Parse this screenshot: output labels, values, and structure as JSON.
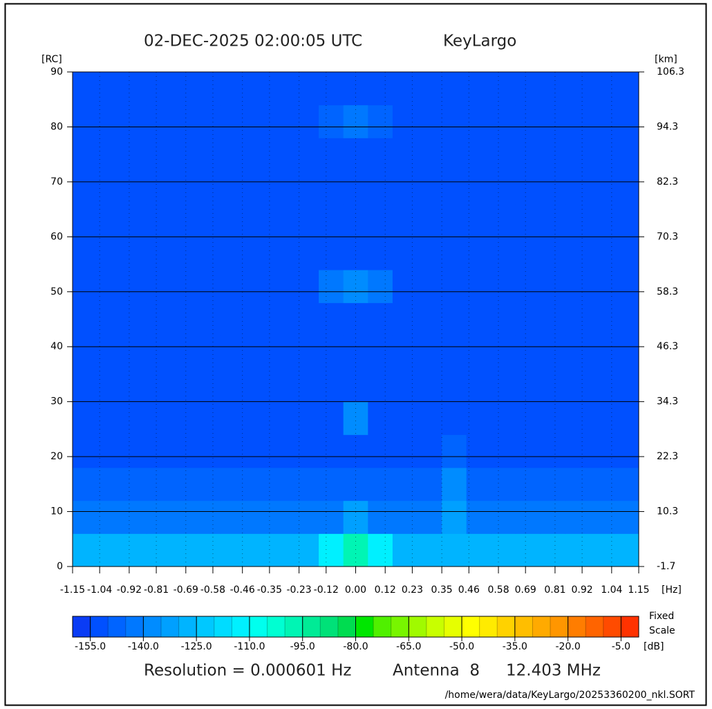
{
  "chart_data": {
    "type": "heatmap",
    "title": "02-DEC-2025 02:00:05 UTC",
    "subtitle": "KeyLargo",
    "x_label": "[Hz]",
    "y_label": "[RC]",
    "y2_label": "[km]",
    "xlim": [
      -1.15,
      1.15
    ],
    "ylim": [
      0,
      90
    ],
    "y2lim": [
      -1.7,
      106.3
    ],
    "xticks": [
      -1.15,
      -1.04,
      -0.92,
      -0.81,
      -0.69,
      -0.58,
      -0.46,
      -0.35,
      -0.23,
      -0.12,
      {
        "value": 0,
        "label": "0.00"
      },
      0.12,
      0.23,
      0.35,
      0.46,
      0.58,
      0.69,
      0.81,
      0.92,
      1.04,
      1.15
    ],
    "yticks": [
      0,
      10,
      20,
      30,
      40,
      50,
      60,
      70,
      80,
      90
    ],
    "y2ticks": [
      -1.7,
      10.3,
      22.3,
      34.3,
      46.3,
      58.3,
      70.3,
      82.3,
      94.3,
      106.3
    ],
    "grid": true,
    "xbins": [
      -1.15,
      -1.05,
      -0.95,
      -0.85,
      -0.75,
      -0.65,
      -0.55,
      -0.45,
      -0.35,
      -0.25,
      -0.15,
      -0.05,
      0.05,
      0.15,
      0.25,
      0.35,
      0.45,
      0.55,
      0.65,
      0.75,
      0.85,
      0.95,
      1.05,
      1.15
    ],
    "ybins": [
      0,
      6,
      12,
      18,
      24,
      30,
      36,
      42,
      48,
      54,
      60,
      66,
      72,
      78,
      84,
      90
    ],
    "values": [
      [
        -130,
        -130,
        -130,
        -130,
        -130,
        -130,
        -130,
        -130,
        -130,
        -130,
        -115,
        -100,
        -115,
        -130,
        -130,
        -128,
        -130,
        -130,
        -130,
        -130,
        -130,
        -130,
        -130
      ],
      [
        -145,
        -145,
        -145,
        -145,
        -145,
        -145,
        -145,
        -145,
        -145,
        -145,
        -145,
        -135,
        -145,
        -145,
        -145,
        -135,
        -145,
        -145,
        -145,
        -145,
        -145,
        -145,
        -145
      ],
      [
        -150,
        -150,
        -150,
        -150,
        -150,
        -150,
        -150,
        -150,
        -150,
        -150,
        -150,
        -150,
        -150,
        -150,
        -150,
        -140,
        -150,
        -150,
        -150,
        -150,
        -150,
        -150,
        -150
      ],
      [
        -153,
        -153,
        -153,
        -153,
        -153,
        -153,
        -153,
        -153,
        -153,
        -153,
        -153,
        -153,
        -153,
        -153,
        -153,
        -148,
        -153,
        -153,
        -153,
        -153,
        -153,
        -153,
        -153
      ],
      [
        -155,
        -155,
        -155,
        -155,
        -155,
        -155,
        -155,
        -155,
        -155,
        -155,
        -155,
        -140,
        -155,
        -155,
        -155,
        -152,
        -155,
        -155,
        -155,
        -155,
        -155,
        -155,
        -155
      ],
      [
        -155,
        -155,
        -155,
        -155,
        -155,
        -155,
        -155,
        -155,
        -155,
        -155,
        -155,
        -155,
        -155,
        -155,
        -155,
        -155,
        -155,
        -155,
        -155,
        -155,
        -155,
        -155,
        -155
      ],
      [
        -155,
        -155,
        -155,
        -155,
        -155,
        -155,
        -155,
        -155,
        -155,
        -155,
        -155,
        -155,
        -155,
        -155,
        -155,
        -155,
        -155,
        -155,
        -155,
        -155,
        -155,
        -155,
        -155
      ],
      [
        -155,
        -155,
        -155,
        -155,
        -155,
        -155,
        -155,
        -155,
        -155,
        -155,
        -155,
        -155,
        -155,
        -155,
        -155,
        -155,
        -155,
        -155,
        -155,
        -155,
        -155,
        -155,
        -155
      ],
      [
        -155,
        -155,
        -155,
        -155,
        -155,
        -155,
        -155,
        -155,
        -155,
        -155,
        -145,
        -138,
        -145,
        -155,
        -155,
        -155,
        -155,
        -155,
        -155,
        -155,
        -155,
        -155,
        -155
      ],
      [
        -155,
        -155,
        -155,
        -155,
        -155,
        -155,
        -155,
        -155,
        -155,
        -155,
        -155,
        -155,
        -155,
        -155,
        -155,
        -155,
        -155,
        -155,
        -155,
        -155,
        -155,
        -155,
        -155
      ],
      [
        -155,
        -155,
        -155,
        -155,
        -155,
        -155,
        -155,
        -155,
        -155,
        -155,
        -155,
        -155,
        -155,
        -155,
        -155,
        -155,
        -155,
        -155,
        -155,
        -155,
        -155,
        -155,
        -155
      ],
      [
        -155,
        -155,
        -155,
        -155,
        -155,
        -155,
        -155,
        -155,
        -155,
        -155,
        -155,
        -155,
        -155,
        -155,
        -155,
        -155,
        -155,
        -155,
        -155,
        -155,
        -155,
        -155,
        -155
      ],
      [
        -155,
        -155,
        -155,
        -155,
        -155,
        -155,
        -155,
        -155,
        -155,
        -155,
        -155,
        -155,
        -155,
        -155,
        -155,
        -155,
        -155,
        -155,
        -155,
        -155,
        -155,
        -155,
        -155
      ],
      [
        -155,
        -155,
        -155,
        -155,
        -155,
        -155,
        -155,
        -155,
        -155,
        -155,
        -148,
        -143,
        -148,
        -155,
        -155,
        -155,
        -155,
        -155,
        -155,
        -155,
        -155,
        -155,
        -155
      ],
      [
        -155,
        -155,
        -155,
        -155,
        -155,
        -155,
        -155,
        -155,
        -155,
        -155,
        -155,
        -155,
        -155,
        -155,
        -155,
        -155,
        -155,
        -155,
        -155,
        -155,
        -155,
        -155,
        -155
      ]
    ],
    "colorbar": {
      "lim": [
        -160,
        0
      ],
      "colors": [
        "#0a3cf5",
        "#0050ff",
        "#0064ff",
        "#0078ff",
        "#008cff",
        "#00a0ff",
        "#00b4ff",
        "#00c8ff",
        "#00dcff",
        "#00f0ff",
        "#00ffee",
        "#00ffd2",
        "#00f5b4",
        "#00eb96",
        "#00e178",
        "#00dc50",
        "#00e600",
        "#50f000",
        "#78f500",
        "#a0fa00",
        "#c8ff00",
        "#e6ff00",
        "#ffff00",
        "#ffeb00",
        "#ffd200",
        "#ffbe00",
        "#ffaa00",
        "#ff9600",
        "#ff7d00",
        "#ff6400",
        "#ff4b00",
        "#ff3200"
      ],
      "ticks": [
        {
          "value": -155,
          "label": "-155.0"
        },
        {
          "value": -140,
          "label": "-140.0"
        },
        {
          "value": -125,
          "label": "-125.0"
        },
        {
          "value": -110,
          "label": "-110.0"
        },
        {
          "value": -95,
          "label": "-95.0"
        },
        {
          "value": -80,
          "label": "-80.0"
        },
        {
          "value": -65,
          "label": "-65.0"
        },
        {
          "value": -50,
          "label": "-50.0"
        },
        {
          "value": -35,
          "label": "-35.0"
        },
        {
          "value": -20,
          "label": "-20.0"
        },
        {
          "value": -5,
          "label": "-5.0"
        }
      ],
      "label": "[dB]",
      "title": "Fixed",
      "subtitle": "Scale"
    },
    "resolution": "Resolution = 0.000601 Hz",
    "antenna": "Antenna  8",
    "frequency": "12.403 MHz",
    "file_path": "/home/wera/data/KeyLargo/20253360200_nkl.SORT"
  }
}
